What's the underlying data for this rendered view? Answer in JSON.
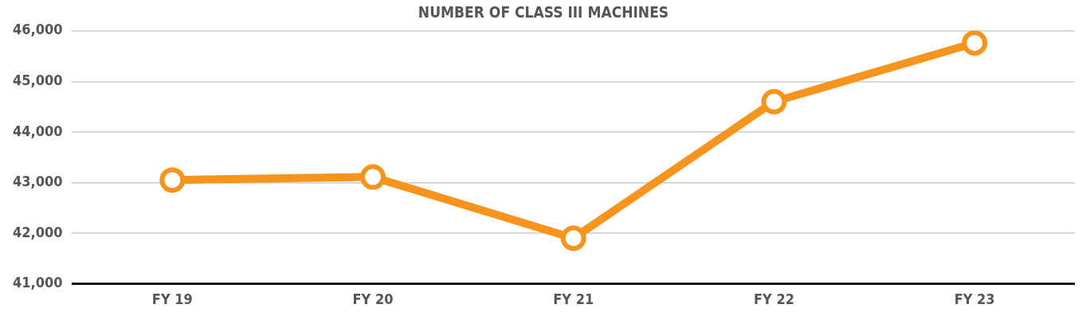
{
  "chart_data": {
    "type": "line",
    "title": "NUMBER OF CLASS III MACHINES",
    "categories": [
      "FY 19",
      "FY 20",
      "FY 21",
      "FY 22",
      "FY 23"
    ],
    "series": [
      {
        "color": "#f7941d",
        "values": [
          43050,
          43110,
          41900,
          44600,
          45760
        ]
      }
    ],
    "ylim": [
      41000,
      46000
    ],
    "yticks": [
      {
        "value": 41000,
        "label": "41,000"
      },
      {
        "value": 42000,
        "label": "42,000"
      },
      {
        "value": 43000,
        "label": "43,000"
      },
      {
        "value": 44000,
        "label": "44,000"
      },
      {
        "value": 45000,
        "label": "45,000"
      },
      {
        "value": 46000,
        "label": "46,000"
      }
    ],
    "grid": "y",
    "legend": false,
    "marker": "circle",
    "line_style": "solid"
  }
}
